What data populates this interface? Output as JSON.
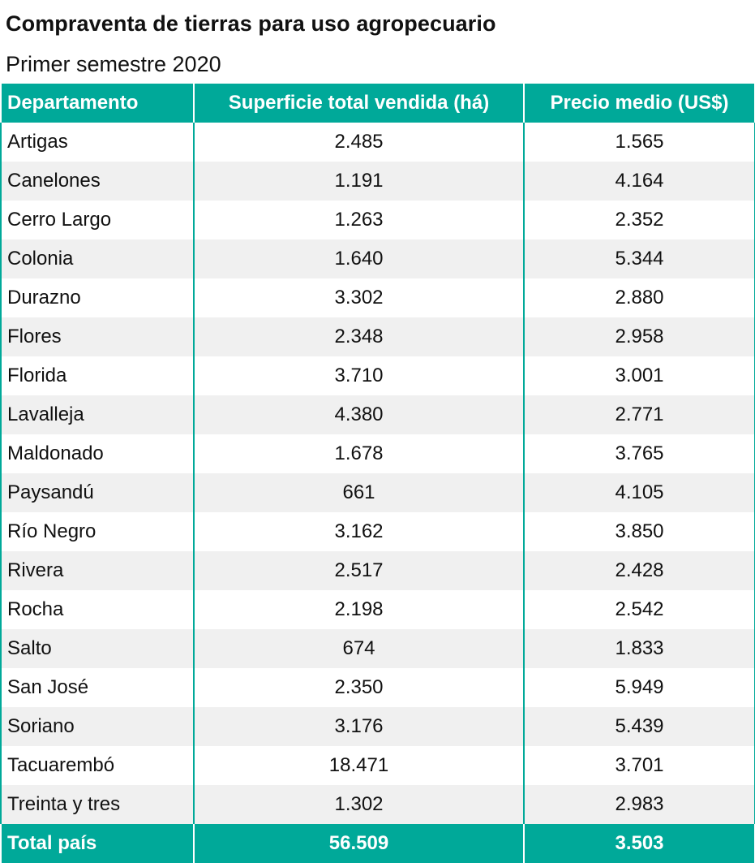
{
  "title": "Compraventa de tierras para uso agropecuario",
  "subtitle": "Primer semestre 2020",
  "colors": {
    "header_bg": "#00a999",
    "header_text": "#ffffff",
    "stripe": "#f0f0f0"
  },
  "chart_data": {
    "type": "table",
    "title": "Compraventa de tierras para uso agropecuario",
    "subtitle": "Primer semestre 2020",
    "columns": [
      "Departamento",
      "Superficie total vendida (há)",
      "Precio medio (US$)"
    ],
    "rows": [
      [
        "Artigas",
        "2.485",
        "1.565"
      ],
      [
        "Canelones",
        "1.191",
        "4.164"
      ],
      [
        "Cerro Largo",
        "1.263",
        "2.352"
      ],
      [
        "Colonia",
        "1.640",
        "5.344"
      ],
      [
        "Durazno",
        "3.302",
        "2.880"
      ],
      [
        "Flores",
        "2.348",
        "2.958"
      ],
      [
        "Florida",
        "3.710",
        "3.001"
      ],
      [
        "Lavalleja",
        "4.380",
        "2.771"
      ],
      [
        "Maldonado",
        "1.678",
        "3.765"
      ],
      [
        "Paysandú",
        "661",
        "4.105"
      ],
      [
        "Río Negro",
        "3.162",
        "3.850"
      ],
      [
        "Rivera",
        "2.517",
        "2.428"
      ],
      [
        "Rocha",
        "2.198",
        "2.542"
      ],
      [
        "Salto",
        "674",
        "1.833"
      ],
      [
        "San José",
        "2.350",
        "5.949"
      ],
      [
        "Soriano",
        "3.176",
        "5.439"
      ],
      [
        "Tacuarembó",
        "18.471",
        "3.701"
      ],
      [
        "Treinta y tres",
        "1.302",
        "2.983"
      ]
    ],
    "total": [
      "Total país",
      "56.509",
      "3.503"
    ]
  }
}
